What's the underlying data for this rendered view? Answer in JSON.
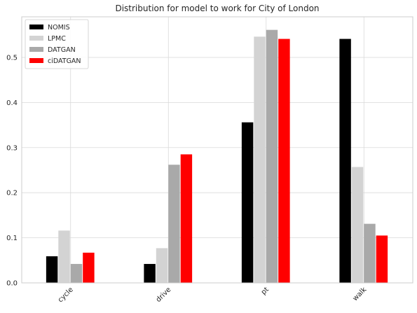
{
  "chart_data": {
    "type": "bar",
    "title": "Distribution for model to work for City of London",
    "xlabel": "",
    "ylabel": "",
    "categories": [
      "cycle",
      "drive",
      "pt",
      "walk"
    ],
    "ylim": [
      0,
      0.59
    ],
    "yticks": [
      0.0,
      0.1,
      0.2,
      0.3,
      0.4,
      0.5
    ],
    "ytick_labels": [
      "0.0",
      "0.1",
      "0.2",
      "0.3",
      "0.4",
      "0.5"
    ],
    "grid": true,
    "legend_position": "top-left",
    "series": [
      {
        "name": "NOMIS",
        "color": "#000000",
        "values": [
          0.059,
          0.042,
          0.356,
          0.541
        ]
      },
      {
        "name": "LPMC",
        "color": "#d3d3d3",
        "values": [
          0.116,
          0.077,
          0.546,
          0.257
        ]
      },
      {
        "name": "DATGAN",
        "color": "#a9a9a9",
        "values": [
          0.042,
          0.262,
          0.561,
          0.131
        ]
      },
      {
        "name": "ciDATGAN",
        "color": "#ff0000",
        "values": [
          0.067,
          0.285,
          0.541,
          0.105
        ]
      }
    ]
  }
}
